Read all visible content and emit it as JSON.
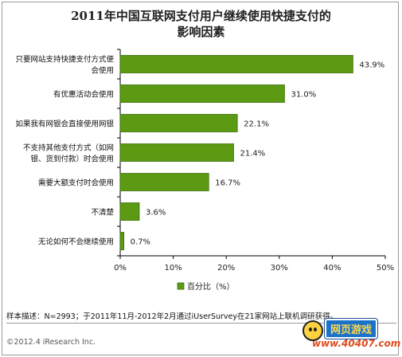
{
  "title": {
    "line1": "2011年中国互联网支付用户继续使用快捷支付的",
    "line2": "影响因素"
  },
  "chart_data": {
    "type": "bar",
    "orientation": "horizontal",
    "categories": [
      "只要网站支持快捷支付方式就会使用",
      "有优惠活动会使用",
      "如果我有网银会直接使用网银",
      "不支持其他支付方式（如网银、货到付款）时会使用",
      "需要大额支付时会使用",
      "不清楚",
      "无论如何不会继续使用"
    ],
    "category_lines": [
      [
        "只要网站支持快捷支付方式便",
        "会使用"
      ],
      [
        "有优惠活动会使用"
      ],
      [
        "如果我有网银会直接使用网银"
      ],
      [
        "不支持其他支付方式（如网",
        "银、货到付款）时会使用"
      ],
      [
        "需要大额支付时会使用"
      ],
      [
        "不清楚"
      ],
      [
        "无论如何不会继续使用"
      ]
    ],
    "series": [
      {
        "name": "百分比（%）",
        "values": [
          43.9,
          31.0,
          22.1,
          21.4,
          16.7,
          3.6,
          0.7
        ],
        "labels": [
          "43.9%",
          "31.0%",
          "22.1%",
          "21.4%",
          "16.7%",
          "3.6%",
          "0.7%"
        ]
      }
    ],
    "x_ticks": [
      "0%",
      "10%",
      "20%",
      "30%",
      "40%",
      "50%"
    ],
    "xlim": [
      0,
      50
    ],
    "legend_position": "bottom",
    "grid": false
  },
  "colors": {
    "bar": "#5c9a14",
    "bar_edge": "#3f6d0c"
  },
  "footer": {
    "note": "样本描述：N=2993；于2011年11月-2012年2月通过iUserSurvey在21家网站上联机调研获得。",
    "copyright": "©2012.4 iResearch Inc.",
    "brand_badge": "网页游戏",
    "brand_url": "www.40407.com"
  }
}
